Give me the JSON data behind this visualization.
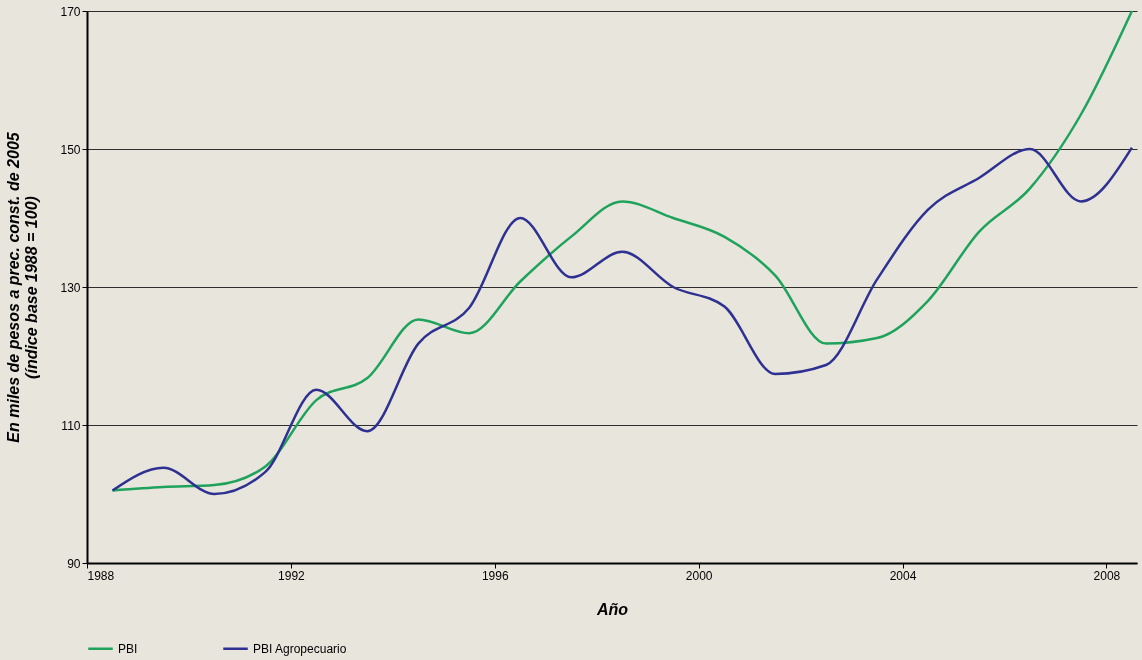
{
  "chart_data": {
    "type": "line",
    "xlabel": "Año",
    "ylabel": "En miles de pesos a prec. const. de 2005\n(índice base 1988 = 100)",
    "x": [
      1988.5,
      1989.5,
      1990.5,
      1991.5,
      1992.5,
      1993.5,
      1994.5,
      1995.5,
      1996.5,
      1997.5,
      1998.5,
      1999.5,
      2000.5,
      2001.5,
      2002.5,
      2003.5,
      2004.5,
      2005.5,
      2006.5,
      2007.5,
      2008.5
    ],
    "series": [
      {
        "name": "PBI",
        "color": "#1fa35c",
        "values": [
          100.5,
          101,
          101.3,
          104,
          113.6,
          116.8,
          125.3,
          123.3,
          130.8,
          137.3,
          142.4,
          140,
          137.3,
          131.7,
          121.8,
          122.6,
          128,
          138,
          144.3,
          155,
          170
        ]
      },
      {
        "name": "PBI Agropecuario",
        "color": "#2e3192",
        "values": [
          100.5,
          103.8,
          100,
          103.2,
          115.1,
          109.1,
          121.8,
          127,
          140,
          131.4,
          135.1,
          130,
          127.2,
          117.4,
          118.7,
          131.1,
          141.2,
          145.8,
          150,
          142.4,
          150.2
        ]
      }
    ],
    "xlim": [
      1988,
      2008.6
    ],
    "xticks": [
      1988,
      1992,
      1996,
      2000,
      2004,
      2008
    ],
    "ylim": [
      90,
      170
    ],
    "yticks": [
      90,
      110,
      130,
      150,
      170
    ],
    "grid": "y",
    "legend": "bottom left",
    "marker": "none",
    "line_style": "solid"
  }
}
